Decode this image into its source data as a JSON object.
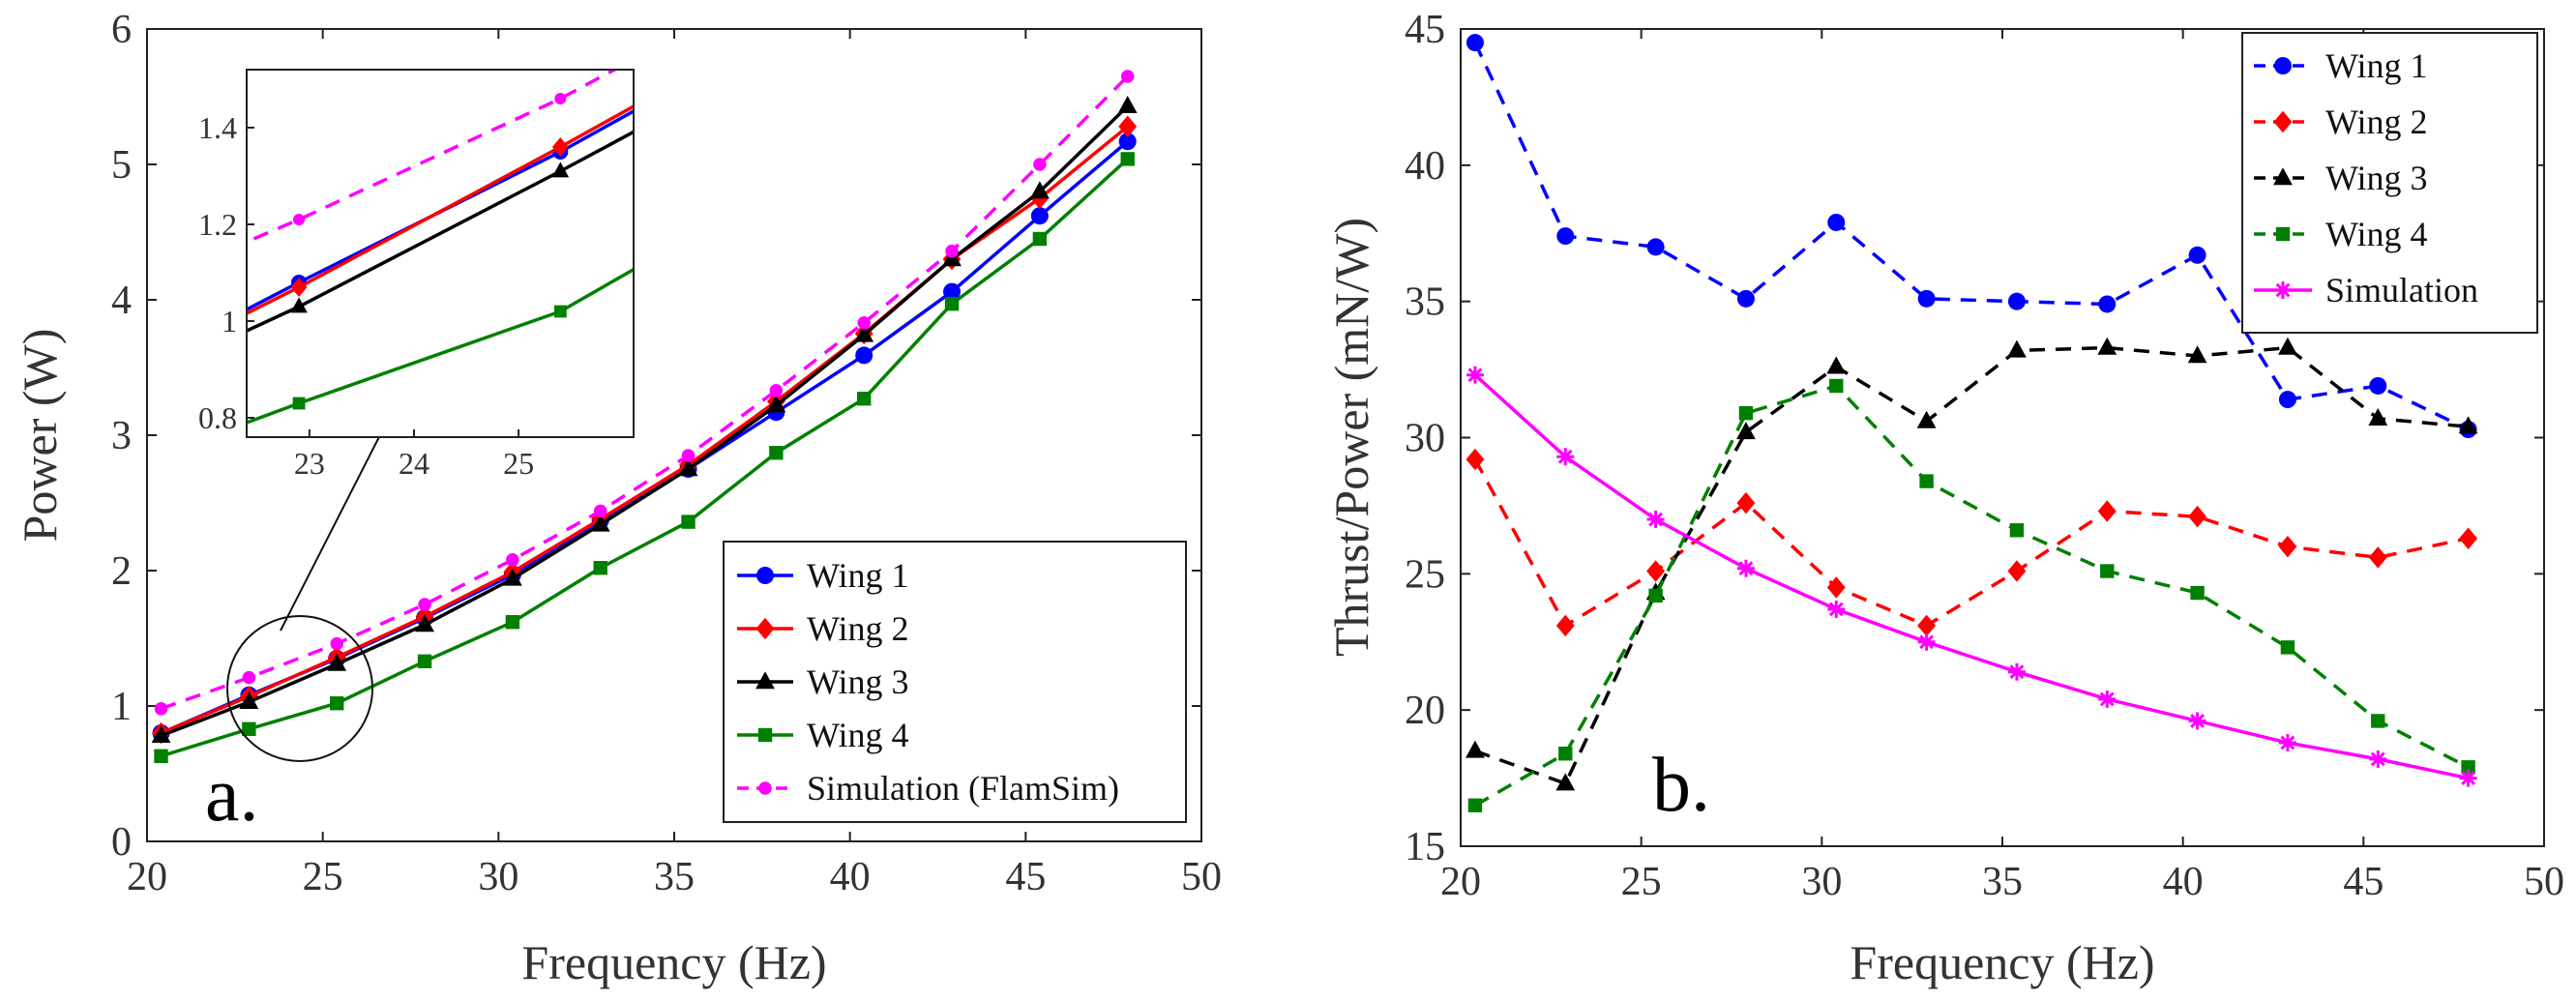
{
  "chart_data": [
    {
      "type": "line",
      "panel_label": "a.",
      "title": "",
      "xlabel": "Frequency (Hz)",
      "ylabel": "Power (W)",
      "xlim": [
        20,
        50
      ],
      "ylim": [
        0,
        6
      ],
      "xticks": [
        "20",
        "25",
        "30",
        "35",
        "40",
        "45",
        "50"
      ],
      "yticks": [
        "0",
        "1",
        "2",
        "3",
        "4",
        "5",
        "6"
      ],
      "legend_position": "bottom-right",
      "x": [
        20.4,
        22.9,
        25.4,
        27.9,
        30.4,
        32.9,
        35.4,
        37.9,
        40.4,
        42.9,
        45.4,
        47.9
      ],
      "series": [
        {
          "name": "Wing 1",
          "color": "#0000ff",
          "line": "solid",
          "marker": "circle",
          "values": [
            0.8,
            1.08,
            1.35,
            1.65,
            1.97,
            2.37,
            2.75,
            3.17,
            3.59,
            4.06,
            4.62,
            5.17
          ]
        },
        {
          "name": "Wing 2",
          "color": "#ff0000",
          "line": "solid",
          "marker": "diamond",
          "values": [
            0.8,
            1.07,
            1.36,
            1.66,
            1.99,
            2.38,
            2.78,
            3.25,
            3.75,
            4.3,
            4.75,
            5.28
          ]
        },
        {
          "name": "Wing 3",
          "color": "#000000",
          "line": "solid",
          "marker": "triangle",
          "values": [
            0.78,
            1.03,
            1.31,
            1.6,
            1.94,
            2.34,
            2.75,
            3.22,
            3.74,
            4.3,
            4.8,
            5.43
          ]
        },
        {
          "name": "Wing 4",
          "color": "#008000",
          "line": "solid",
          "marker": "square",
          "values": [
            0.63,
            0.83,
            1.02,
            1.33,
            1.62,
            2.02,
            2.36,
            2.87,
            3.27,
            3.97,
            4.45,
            5.04
          ]
        },
        {
          "name": "Simulation (FlamSim)",
          "color": "#ff00ff",
          "line": "dashed",
          "marker": "dot",
          "values": [
            0.98,
            1.21,
            1.46,
            1.75,
            2.08,
            2.44,
            2.85,
            3.33,
            3.83,
            4.36,
            5.0,
            5.65
          ]
        }
      ],
      "inset": {
        "xlim": [
          22.4,
          26.1
        ],
        "ylim": [
          0.76,
          1.52
        ],
        "xticks": [
          "23",
          "24",
          "25"
        ],
        "yticks": [
          "0.8",
          "1",
          "1.2",
          "1.4"
        ]
      }
    },
    {
      "type": "line",
      "panel_label": "b.",
      "title": "",
      "xlabel": "Frequency (Hz)",
      "ylabel": "Thrust/Power (mN/W)",
      "xlim": [
        20,
        50
      ],
      "ylim": [
        15,
        45
      ],
      "xticks": [
        "20",
        "25",
        "30",
        "35",
        "40",
        "45",
        "50"
      ],
      "yticks": [
        "15",
        "20",
        "25",
        "30",
        "35",
        "40",
        "45"
      ],
      "legend_position": "top-right",
      "x": [
        20.4,
        22.9,
        25.4,
        27.9,
        30.4,
        32.9,
        35.4,
        37.9,
        40.4,
        42.9,
        45.4,
        47.9
      ],
      "series": [
        {
          "name": "Wing 1",
          "color": "#0000ff",
          "line": "dashed",
          "marker": "circle",
          "values": [
            44.5,
            37.4,
            37.0,
            35.1,
            37.9,
            35.1,
            35.0,
            34.9,
            36.7,
            31.4,
            31.9,
            30.3
          ]
        },
        {
          "name": "Wing 2",
          "color": "#ff0000",
          "line": "dashed",
          "marker": "diamond",
          "values": [
            29.2,
            23.1,
            25.1,
            27.6,
            24.5,
            23.1,
            25.1,
            27.3,
            27.1,
            26.0,
            25.6,
            26.3
          ]
        },
        {
          "name": "Wing 3",
          "color": "#000000",
          "line": "dashed",
          "marker": "triangle",
          "values": [
            18.5,
            17.3,
            24.3,
            30.2,
            32.6,
            30.6,
            33.2,
            33.3,
            33.0,
            33.3,
            30.7,
            30.4
          ]
        },
        {
          "name": "Wing 4",
          "color": "#008000",
          "line": "dashed",
          "marker": "square",
          "values": [
            16.5,
            18.4,
            24.2,
            30.9,
            31.9,
            28.4,
            26.6,
            25.1,
            24.3,
            22.3,
            19.6,
            17.9
          ]
        },
        {
          "name": "Simulation",
          "color": "#ff00ff",
          "line": "solid",
          "marker": "asterisk",
          "values": [
            32.3,
            29.3,
            27.0,
            25.2,
            23.7,
            22.5,
            21.4,
            20.4,
            19.6,
            18.8,
            18.2,
            17.5
          ]
        }
      ]
    }
  ]
}
